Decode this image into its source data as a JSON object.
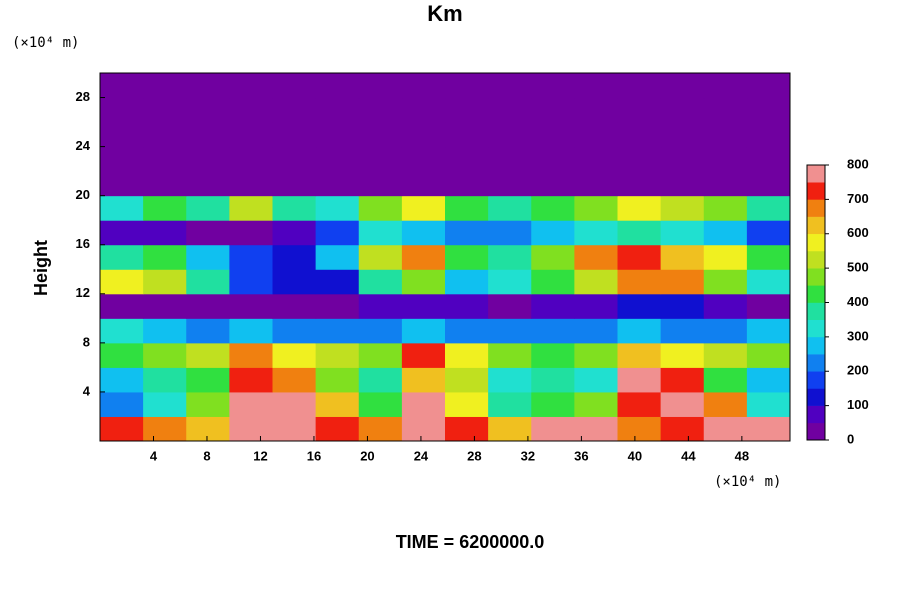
{
  "chart_data": {
    "type": "heatmap",
    "title": "Km",
    "y_unit": "(×10⁴ m)",
    "x_unit": "(×10⁴ m)",
    "ylabel": "Height",
    "footer": "TIME = 6200000.0",
    "xlim": [
      0,
      51.6
    ],
    "ylim": [
      0,
      30
    ],
    "xticks": [
      4,
      8,
      12,
      16,
      20,
      24,
      28,
      32,
      36,
      40,
      44,
      48
    ],
    "yticks": [
      4,
      8,
      12,
      16,
      20,
      24,
      28
    ],
    "zlim": [
      0,
      800
    ],
    "zticks": [
      0,
      100,
      200,
      300,
      400,
      500,
      600,
      700,
      800
    ],
    "colors": [
      "#7000a0",
      "#5000c0",
      "#1010d0",
      "#1040f0",
      "#1080f0",
      "#10c0f0",
      "#20e0d0",
      "#20e0a0",
      "#30e040",
      "#80e020",
      "#c0e020",
      "#f0f020",
      "#f0c020",
      "#f08010",
      "#f02010",
      "#f09090"
    ],
    "z": [
      [
        700,
        650,
        600,
        750,
        800,
        700,
        650,
        800,
        700,
        600,
        750,
        800,
        650,
        700,
        750,
        800
      ],
      [
        200,
        300,
        450,
        800,
        800,
        600,
        400,
        800,
        550,
        350,
        400,
        450,
        700,
        800,
        650,
        300
      ],
      [
        250,
        350,
        400,
        700,
        650,
        450,
        350,
        600,
        500,
        300,
        350,
        300,
        800,
        700,
        400,
        250
      ],
      [
        400,
        450,
        500,
        650,
        550,
        500,
        450,
        700,
        550,
        450,
        400,
        450,
        600,
        550,
        500,
        450
      ],
      [
        300,
        250,
        200,
        250,
        200,
        200,
        200,
        250,
        200,
        200,
        200,
        200,
        250,
        200,
        200,
        250
      ],
      [
        20,
        30,
        20,
        0,
        20,
        40,
        60,
        80,
        60,
        40,
        60,
        80,
        100,
        120,
        60,
        40
      ],
      [
        550,
        500,
        350,
        150,
        100,
        100,
        350,
        450,
        250,
        300,
        400,
        500,
        650,
        650,
        450,
        300
      ],
      [
        350,
        400,
        250,
        150,
        100,
        250,
        500,
        650,
        400,
        350,
        450,
        650,
        700,
        600,
        550,
        400
      ],
      [
        60,
        80,
        40,
        20,
        60,
        150,
        300,
        250,
        200,
        200,
        250,
        300,
        350,
        300,
        250,
        150
      ],
      [
        300,
        400,
        350,
        500,
        350,
        300,
        450,
        550,
        400,
        350,
        400,
        450,
        550,
        500,
        450,
        350
      ],
      [
        0,
        0,
        0,
        0,
        0,
        0,
        0,
        0,
        0,
        0,
        0,
        0,
        0,
        0,
        0,
        0
      ],
      [
        0,
        0,
        0,
        0,
        0,
        0,
        0,
        0,
        0,
        0,
        0,
        0,
        0,
        0,
        0,
        0
      ],
      [
        0,
        0,
        0,
        0,
        0,
        0,
        0,
        0,
        0,
        0,
        0,
        0,
        0,
        0,
        0,
        0
      ],
      [
        0,
        0,
        0,
        0,
        0,
        0,
        0,
        0,
        0,
        0,
        0,
        0,
        0,
        0,
        0,
        0
      ],
      [
        0,
        0,
        0,
        0,
        0,
        0,
        0,
        0,
        0,
        0,
        0,
        0,
        0,
        0,
        0,
        0
      ]
    ]
  }
}
